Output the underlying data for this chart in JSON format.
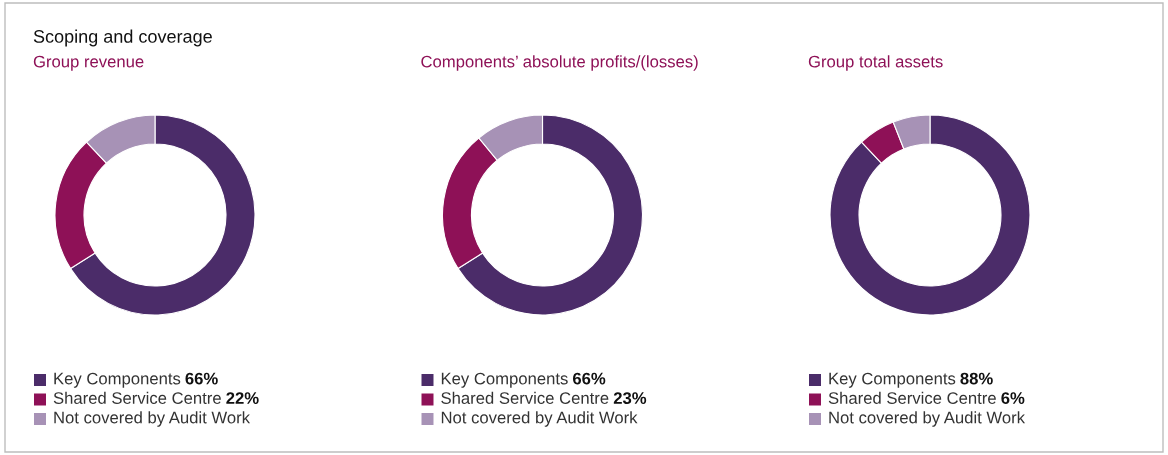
{
  "chart_data": [
    {
      "type": "donut",
      "title": "Scoping and coverage",
      "subtitle": "Group revenue",
      "categories": [
        "Key Components",
        "Shared Service Centre",
        "Not covered by Audit Work"
      ],
      "values": [
        66,
        22,
        12
      ],
      "value_labels": [
        "66%",
        "22%",
        null
      ],
      "colors": [
        "#4b2c69",
        "#8e1157",
        "#a792b6"
      ],
      "legend": "bottom"
    },
    {
      "type": "donut",
      "subtitle": "Components’ absolute profits/(losses)",
      "categories": [
        "Key Components",
        "Shared Service Centre",
        "Not covered by Audit Work"
      ],
      "values": [
        66,
        23,
        11
      ],
      "value_labels": [
        "66%",
        "23%",
        null
      ],
      "colors": [
        "#4b2c69",
        "#8e1157",
        "#a792b6"
      ],
      "legend": "bottom"
    },
    {
      "type": "donut",
      "subtitle": "Group total assets",
      "categories": [
        "Key Components",
        "Shared Service Centre",
        "Not covered by Audit Work"
      ],
      "values": [
        88,
        6,
        6
      ],
      "value_labels": [
        "88%",
        "6%",
        null
      ],
      "colors": [
        "#4b2c69",
        "#8e1157",
        "#a792b6"
      ],
      "legend": "bottom"
    }
  ]
}
